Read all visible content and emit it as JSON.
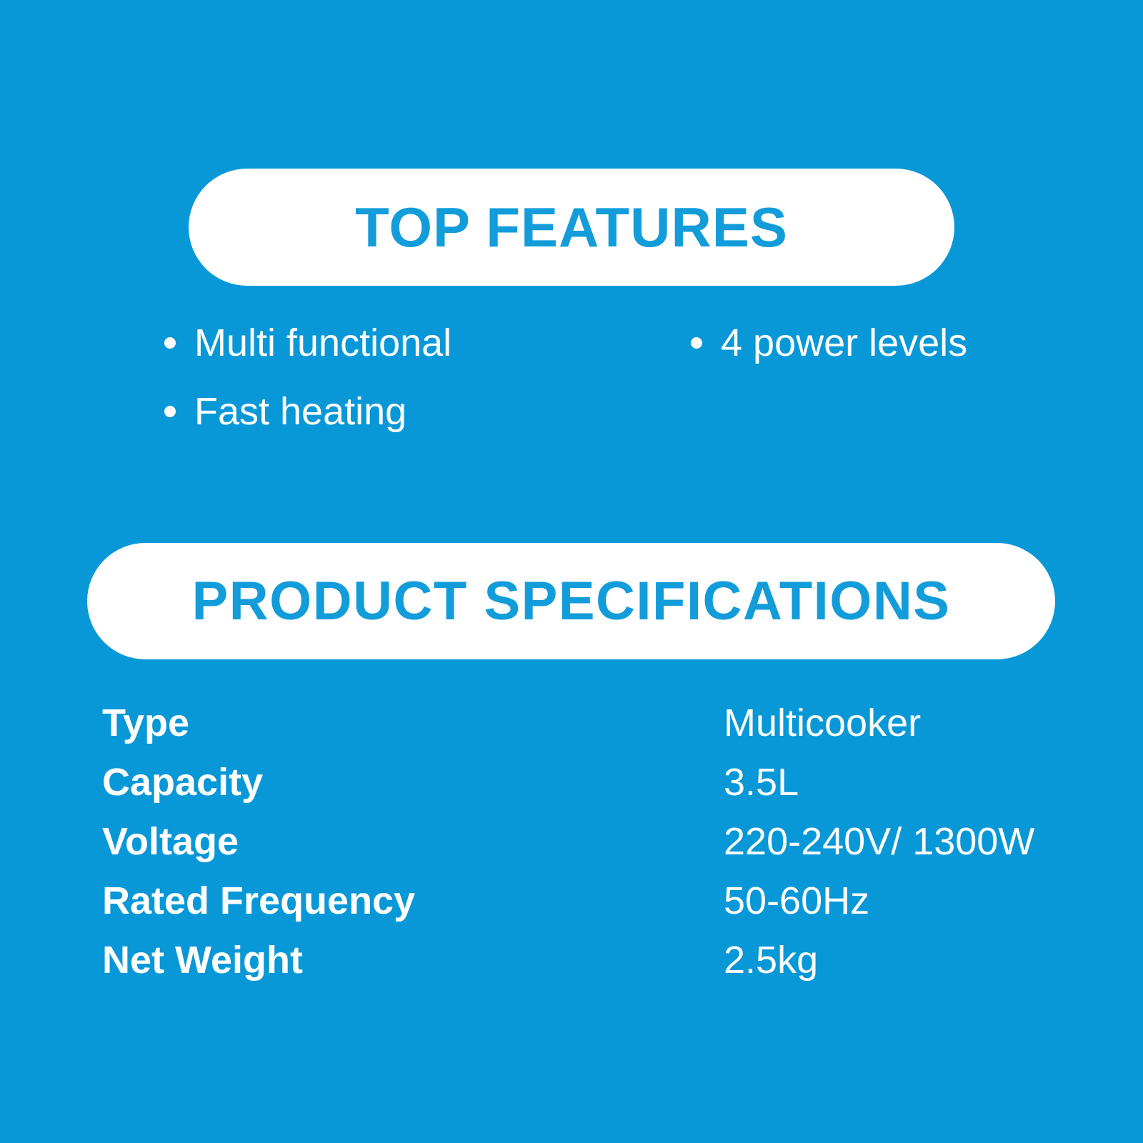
{
  "colors": {
    "background": "#0898D8",
    "pill_background": "#FFFFFF",
    "heading_text": "#129CDA",
    "body_text": "#FFFFFF"
  },
  "top_features": {
    "title": "TOP FEATURES",
    "items": [
      {
        "label": "Multi functional"
      },
      {
        "label": "Fast heating"
      },
      {
        "label": "4 power levels"
      }
    ]
  },
  "product_specifications": {
    "title": "PRODUCT SPECIFICATIONS",
    "rows": [
      {
        "label": "Type",
        "value": "Multicooker"
      },
      {
        "label": "Capacity",
        "value": "3.5L"
      },
      {
        "label": "Voltage",
        "value": "220-240V/ 1300W"
      },
      {
        "label": "Rated Frequency",
        "value": "50-60Hz"
      },
      {
        "label": "Net Weight",
        "value": "2.5kg"
      }
    ]
  }
}
